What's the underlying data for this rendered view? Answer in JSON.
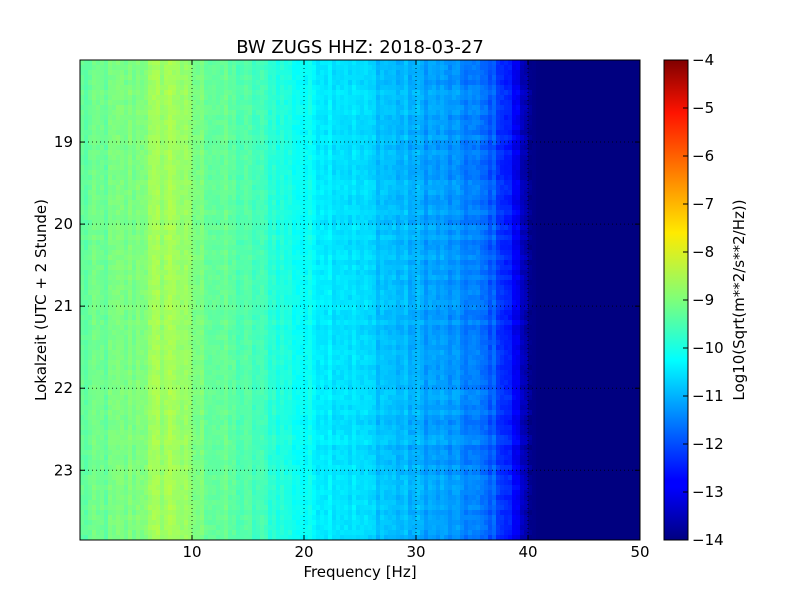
{
  "chart_data": {
    "type": "heatmap",
    "title": "BW ZUGS HHZ: 2018-03-27",
    "xlabel": "Frequency [Hz]",
    "ylabel": "Lokalzeit (UTC + 2 Stunde)",
    "xlim": [
      0,
      50
    ],
    "ylim": [
      18.0,
      23.85
    ],
    "y_inverted": true,
    "xticks": [
      10,
      20,
      30,
      40,
      50
    ],
    "yticks": [
      19,
      20,
      21,
      22,
      23
    ],
    "grid": true,
    "colormap": "jet",
    "colorbar": {
      "label": "Log10(Sqrt(m**2/s**2/Hz))",
      "min": -14,
      "max": -4,
      "ticks": [
        -4,
        -5,
        -6,
        -7,
        -8,
        -9,
        -10,
        -11,
        -12,
        -13,
        -14
      ]
    },
    "spectrum_profile": {
      "frequency_hz": [
        0,
        2,
        5,
        7,
        8.5,
        10,
        13,
        16,
        20,
        24,
        28,
        32,
        35,
        37,
        38.5,
        39.5,
        40,
        41,
        50
      ],
      "log10_amplitude": [
        -9.3,
        -9.2,
        -9.0,
        -8.7,
        -8.6,
        -9.0,
        -9.3,
        -9.6,
        -10.2,
        -10.5,
        -10.9,
        -11.2,
        -11.5,
        -11.9,
        -12.6,
        -13.3,
        -13.8,
        -14.0,
        -14.0
      ]
    },
    "resolution": {
      "frequency_bins": 140,
      "time_bins": 96
    }
  }
}
